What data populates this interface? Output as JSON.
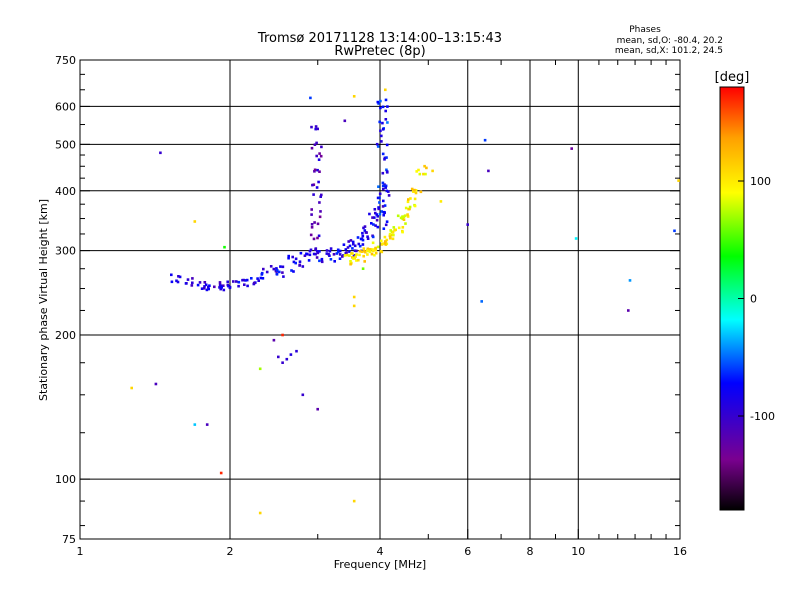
{
  "chart_data": {
    "type": "scatter",
    "title": "Tromsø 20171128 13:14:00–13:15:43",
    "subtitle": "RwPretec (8p)",
    "xlabel": "Frequency [MHz]",
    "ylabel": "Stationary phase Virtual Height [km]",
    "x_scale": "log",
    "y_scale": "log",
    "xlim": [
      1,
      16
    ],
    "ylim": [
      75,
      750
    ],
    "x_ticks": [
      1,
      2,
      4,
      6,
      8,
      10,
      16
    ],
    "x_tick_labels": [
      "1",
      "2",
      "4",
      "6",
      "8",
      "10",
      "16"
    ],
    "x_minor_ticks": [
      3,
      5,
      7,
      9,
      11,
      12,
      13,
      14,
      15
    ],
    "y_ticks": [
      75,
      100,
      200,
      300,
      400,
      500,
      600,
      750
    ],
    "y_tick_labels": [
      "75",
      "100",
      "200",
      "300",
      "400",
      "500",
      "600",
      "750"
    ],
    "y_minor_ticks": [
      80,
      90,
      125,
      150,
      175,
      225,
      250,
      275,
      325,
      350,
      375,
      425,
      450,
      475,
      550,
      650,
      700
    ],
    "grid": true,
    "stats": {
      "heading": "Phases",
      "line1": "mean, sd,O: -80.4, 20.2",
      "line2": "mean, sd,X: 101.2, 24.5"
    },
    "colorbar": {
      "label": "[deg]",
      "range": [
        -180,
        180
      ],
      "ticks": [
        100,
        0,
        -100
      ],
      "tick_labels": [
        "100",
        "0",
        "-100"
      ]
    },
    "trace_o_low": {
      "freq": [
        1.55,
        1.65,
        1.75,
        1.82,
        1.9,
        1.95,
        2.05,
        2.15,
        2.25,
        2.35,
        2.45
      ],
      "height": [
        262,
        258,
        255,
        253,
        252,
        252,
        254,
        258,
        262,
        268,
        275
      ],
      "phase": -90
    },
    "trace_o_main": {
      "freq": [
        2.5,
        2.65,
        2.8,
        2.95,
        3.1,
        3.25,
        3.4,
        3.5,
        3.6,
        3.7,
        3.8,
        3.9,
        4.0,
        4.1
      ],
      "height": [
        275,
        282,
        288,
        292,
        295,
        296,
        300,
        305,
        310,
        318,
        328,
        345,
        370,
        400
      ],
      "phase": -85
    },
    "trace_x": {
      "freq": [
        3.45,
        3.55,
        3.65,
        3.75,
        3.85,
        3.95,
        4.05,
        4.15,
        4.25,
        4.35,
        4.45,
        4.55,
        4.65,
        4.75,
        4.85
      ],
      "height": [
        288,
        290,
        292,
        296,
        300,
        305,
        312,
        318,
        325,
        335,
        348,
        362,
        378,
        400,
        440
      ],
      "phase": 100
    },
    "cusp_o_a": {
      "freq": [
        2.98,
        2.98,
        2.98,
        2.98,
        2.98,
        2.98,
        2.98,
        2.98,
        2.98,
        2.98
      ],
      "height": [
        300,
        320,
        340,
        360,
        385,
        410,
        440,
        470,
        500,
        540
      ],
      "phase": -110
    },
    "cusp_o_b": {
      "freq": [
        4.05,
        4.05,
        4.05,
        4.05,
        4.05,
        4.05,
        4.05,
        4.05,
        4.05,
        4.05,
        4.05
      ],
      "height": [
        340,
        360,
        380,
        410,
        440,
        470,
        500,
        530,
        560,
        590,
        610
      ],
      "phase": -70
    },
    "points": [
      {
        "freq": 1.45,
        "height": 480,
        "phase": -100
      },
      {
        "freq": 1.7,
        "height": 345,
        "phase": 110
      },
      {
        "freq": 1.95,
        "height": 305,
        "phase": 40
      },
      {
        "freq": 2.45,
        "height": 195,
        "phase": -120
      },
      {
        "freq": 2.55,
        "height": 200,
        "phase": 170
      },
      {
        "freq": 2.5,
        "height": 180,
        "phase": -100
      },
      {
        "freq": 2.55,
        "height": 175,
        "phase": -100
      },
      {
        "freq": 2.6,
        "height": 178,
        "phase": -95
      },
      {
        "freq": 2.65,
        "height": 182,
        "phase": -90
      },
      {
        "freq": 2.72,
        "height": 185,
        "phase": -95
      },
      {
        "freq": 2.8,
        "height": 150,
        "phase": -100
      },
      {
        "freq": 3.0,
        "height": 140,
        "phase": -120
      },
      {
        "freq": 1.27,
        "height": 155,
        "phase": 110
      },
      {
        "freq": 1.42,
        "height": 158,
        "phase": -110
      },
      {
        "freq": 1.7,
        "height": 130,
        "phase": -30
      },
      {
        "freq": 1.8,
        "height": 130,
        "phase": -110
      },
      {
        "freq": 1.92,
        "height": 103,
        "phase": 170
      },
      {
        "freq": 2.3,
        "height": 170,
        "phase": 70
      },
      {
        "freq": 2.3,
        "height": 85,
        "phase": 110
      },
      {
        "freq": 3.55,
        "height": 90,
        "phase": 110
      },
      {
        "freq": 3.55,
        "height": 240,
        "phase": 110
      },
      {
        "freq": 3.55,
        "height": 230,
        "phase": 110
      },
      {
        "freq": 3.7,
        "height": 275,
        "phase": 60
      },
      {
        "freq": 2.9,
        "height": 625,
        "phase": -60
      },
      {
        "freq": 3.4,
        "height": 560,
        "phase": -110
      },
      {
        "freq": 3.55,
        "height": 630,
        "phase": 110
      },
      {
        "freq": 4.1,
        "height": 650,
        "phase": 110
      },
      {
        "freq": 5.1,
        "height": 440,
        "phase": 110
      },
      {
        "freq": 5.3,
        "height": 380,
        "phase": 100
      },
      {
        "freq": 6.0,
        "height": 340,
        "phase": -100
      },
      {
        "freq": 6.5,
        "height": 510,
        "phase": -60
      },
      {
        "freq": 6.6,
        "height": 440,
        "phase": -110
      },
      {
        "freq": 6.4,
        "height": 235,
        "phase": -50
      },
      {
        "freq": 9.7,
        "height": 490,
        "phase": -130
      },
      {
        "freq": 9.9,
        "height": 318,
        "phase": -20
      },
      {
        "freq": 12.7,
        "height": 260,
        "phase": -40
      },
      {
        "freq": 12.6,
        "height": 225,
        "phase": -120
      },
      {
        "freq": 15.6,
        "height": 330,
        "phase": -60
      },
      {
        "freq": 15.9,
        "height": 420,
        "phase": 110
      }
    ]
  }
}
